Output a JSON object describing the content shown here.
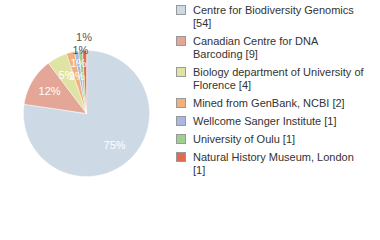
{
  "chart_data": {
    "type": "pie",
    "categories": [
      "Centre for Biodiversity Genomics [54]",
      "Canadian Centre for DNA Barcoding [9]",
      "Biology department of University of Florence [4]",
      "Mined from GenBank, NCBI [2]",
      "Wellcome Sanger Institute [1]",
      "University of Oulu [1]",
      "Natural History Museum, London [1]"
    ],
    "values": [
      75,
      12,
      5,
      2,
      1,
      1,
      1
    ],
    "value_labels": [
      "75%",
      "12%",
      "5%",
      "2%",
      "1%",
      "1%",
      "1%"
    ],
    "colors": [
      "#cdd9e5",
      "#e3a697",
      "#dfe3a3",
      "#f2b07c",
      "#a7b9e0",
      "#9fcf8e",
      "#e06b4f"
    ],
    "data_labels": true,
    "legend": "right"
  }
}
